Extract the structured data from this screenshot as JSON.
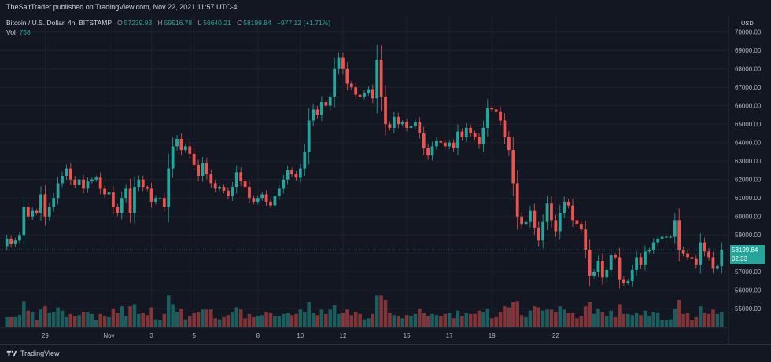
{
  "header": {
    "publish_text": "TheSaltTrader published on TradingView.com, Nov 22, 2021 11:57 UTC-4"
  },
  "legend": {
    "symbol": "Bitcoin / U.S. Dollar, 4h, BITSTAMP",
    "o_label": "O",
    "o_value": "57239.93",
    "h_label": "H",
    "h_value": "59516.78",
    "l_label": "L",
    "l_value": "56640.21",
    "c_label": "C",
    "c_value": "58199.84",
    "change": "+977.12 (+1.71%)",
    "vol_label": "Vol",
    "vol_value": "758"
  },
  "axis": {
    "currency": "USD"
  },
  "price_tag": {
    "price": "58199.84",
    "countdown": "02:33"
  },
  "footer": {
    "brand": "TradingView"
  },
  "colors": {
    "up": "#26a69a",
    "down": "#ef5350",
    "bg": "#131722",
    "grid": "#1e222d",
    "text": "#b2b5be"
  },
  "chart_data": {
    "type": "candlestick",
    "ylim": [
      54200,
      70200
    ],
    "y_ticks": [
      "55000.00",
      "56000.00",
      "57000.00",
      "58000.00",
      "59000.00",
      "60000.00",
      "61000.00",
      "62000.00",
      "63000.00",
      "64000.00",
      "65000.00",
      "66000.00",
      "67000.00",
      "68000.00",
      "69000.00",
      "70000.00"
    ],
    "x_tick_labels": [
      "29",
      "Nov",
      "3",
      "5",
      "8",
      "10",
      "12",
      "15",
      "17",
      "19",
      "22"
    ],
    "x_tick_bar_index": [
      9,
      24,
      34,
      44,
      59,
      69,
      79,
      94,
      104,
      114,
      129
    ],
    "closes": [
      58800,
      58500,
      58700,
      59000,
      60500,
      60000,
      60300,
      60200,
      61200,
      60000,
      60500,
      61000,
      61800,
      62200,
      62600,
      62000,
      61700,
      62000,
      61500,
      61900,
      62000,
      62100,
      61500,
      61200,
      61300,
      60500,
      60200,
      61000,
      61500,
      60200,
      61600,
      62000,
      61600,
      61500,
      60800,
      61000,
      61000,
      60500,
      62600,
      63800,
      64200,
      63600,
      63800,
      63400,
      62800,
      62200,
      62900,
      62300,
      61800,
      61500,
      61600,
      61400,
      61100,
      61600,
      62400,
      61900,
      61600,
      61000,
      60800,
      61000,
      61200,
      60800,
      60600,
      61100,
      61500,
      62000,
      62500,
      62300,
      62100,
      62600,
      63500,
      65200,
      65800,
      65500,
      66200,
      66000,
      66500,
      68000,
      68600,
      68000,
      67200,
      67000,
      66600,
      66500,
      66700,
      66900,
      66400,
      68500,
      66500,
      65000,
      64800,
      65400,
      65000,
      65100,
      64800,
      64900,
      65100,
      64500,
      63700,
      63300,
      63800,
      64100,
      64000,
      63800,
      64000,
      63700,
      64600,
      64300,
      64800,
      64500,
      64300,
      63900,
      64800,
      65900,
      65800,
      65700,
      65200,
      64300,
      63600,
      61800,
      60000,
      59600,
      59700,
      60300,
      59400,
      58700,
      59700,
      60700,
      59800,
      59200,
      60200,
      60800,
      60600,
      59800,
      59600,
      59300,
      58200,
      56800,
      57000,
      57600,
      56700,
      57100,
      57900,
      57800,
      56600,
      56400,
      56500,
      57100,
      57800,
      57400,
      58100,
      58200,
      58600,
      58800,
      58900,
      58900,
      58900,
      59800,
      58200,
      58000,
      57800,
      57700,
      57400,
      58600,
      58100,
      57800,
      57200,
      57300,
      58200
    ],
    "volume_scale": 100
  }
}
